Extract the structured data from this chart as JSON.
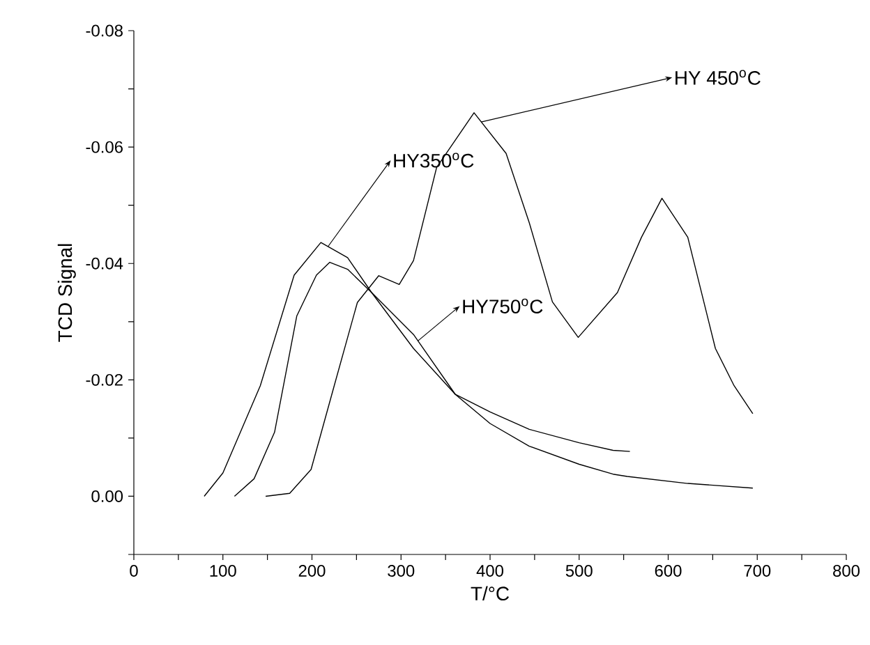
{
  "chart_data": {
    "type": "line",
    "xlabel": "T/°C",
    "ylabel": "TCD Signal",
    "xlim": [
      0,
      800
    ],
    "ylim": [
      0.01,
      -0.08
    ],
    "xticks": [
      0,
      {
        "value": 50,
        "label": null
      },
      100,
      {
        "value": 150,
        "label": null
      },
      200,
      {
        "value": 250,
        "label": null
      },
      300,
      {
        "value": 350,
        "label": null
      },
      400,
      {
        "value": 450,
        "label": null
      },
      500,
      {
        "value": 550,
        "label": null
      },
      600,
      {
        "value": 650,
        "label": null
      },
      700,
      {
        "value": 750,
        "label": null
      },
      800
    ],
    "yticks": [
      {
        "value": 0.01,
        "label": null
      },
      {
        "value": 0,
        "label": "0.00"
      },
      {
        "value": -0.01,
        "label": null
      },
      -0.02,
      {
        "value": -0.03,
        "label": null
      },
      -0.04,
      {
        "value": -0.05,
        "label": null
      },
      -0.06,
      {
        "value": -0.07,
        "label": null
      },
      -0.08
    ],
    "grid": false,
    "marker": "none",
    "line_style": "solid",
    "series": [
      {
        "color": "#000000",
        "x": [
          79,
          100,
          142,
          180,
          210,
          240,
          267,
          314,
          361,
          400,
          444,
          500,
          538,
          557
        ],
        "values": [
          0,
          -0.004,
          -0.019,
          -0.038,
          -0.0436,
          -0.041,
          -0.035,
          -0.0254,
          -0.0175,
          -0.0145,
          -0.0115,
          -0.0092,
          -0.0079,
          -0.0077
        ]
      },
      {
        "color": "#000000",
        "x": [
          113,
          135,
          158,
          183,
          205,
          220,
          240,
          267,
          314,
          361,
          400,
          444,
          500,
          538,
          554,
          622,
          695
        ],
        "values": [
          0,
          -0.003,
          -0.011,
          -0.031,
          -0.038,
          -0.0402,
          -0.039,
          -0.035,
          -0.0278,
          -0.0175,
          -0.0125,
          -0.0086,
          -0.0055,
          -0.0038,
          -0.0034,
          -0.0022,
          -0.0014
        ]
      },
      {
        "color": "#000000",
        "x": [
          148,
          175,
          199,
          225,
          251,
          275,
          298,
          314,
          340,
          382,
          418,
          444,
          470,
          499,
          543,
          570,
          593,
          622,
          653,
          674,
          695
        ],
        "values": [
          0,
          -0.0005,
          -0.0046,
          -0.019,
          -0.0333,
          -0.0379,
          -0.0364,
          -0.0405,
          -0.0565,
          -0.0659,
          -0.0589,
          -0.047,
          -0.0334,
          -0.0273,
          -0.035,
          -0.0445,
          -0.0512,
          -0.0445,
          -0.0254,
          -0.019,
          -0.0142
        ]
      }
    ],
    "annotations": [
      {
        "text": "HY350$^{o}$C",
        "x": 218,
        "y": -0.0429
      },
      {
        "text": "HY 450$^{o}$C",
        "x": 390,
        "y": -0.0643
      },
      {
        "text": "HY750$^{o}$C",
        "x": 319,
        "y": -0.0267
      }
    ]
  }
}
